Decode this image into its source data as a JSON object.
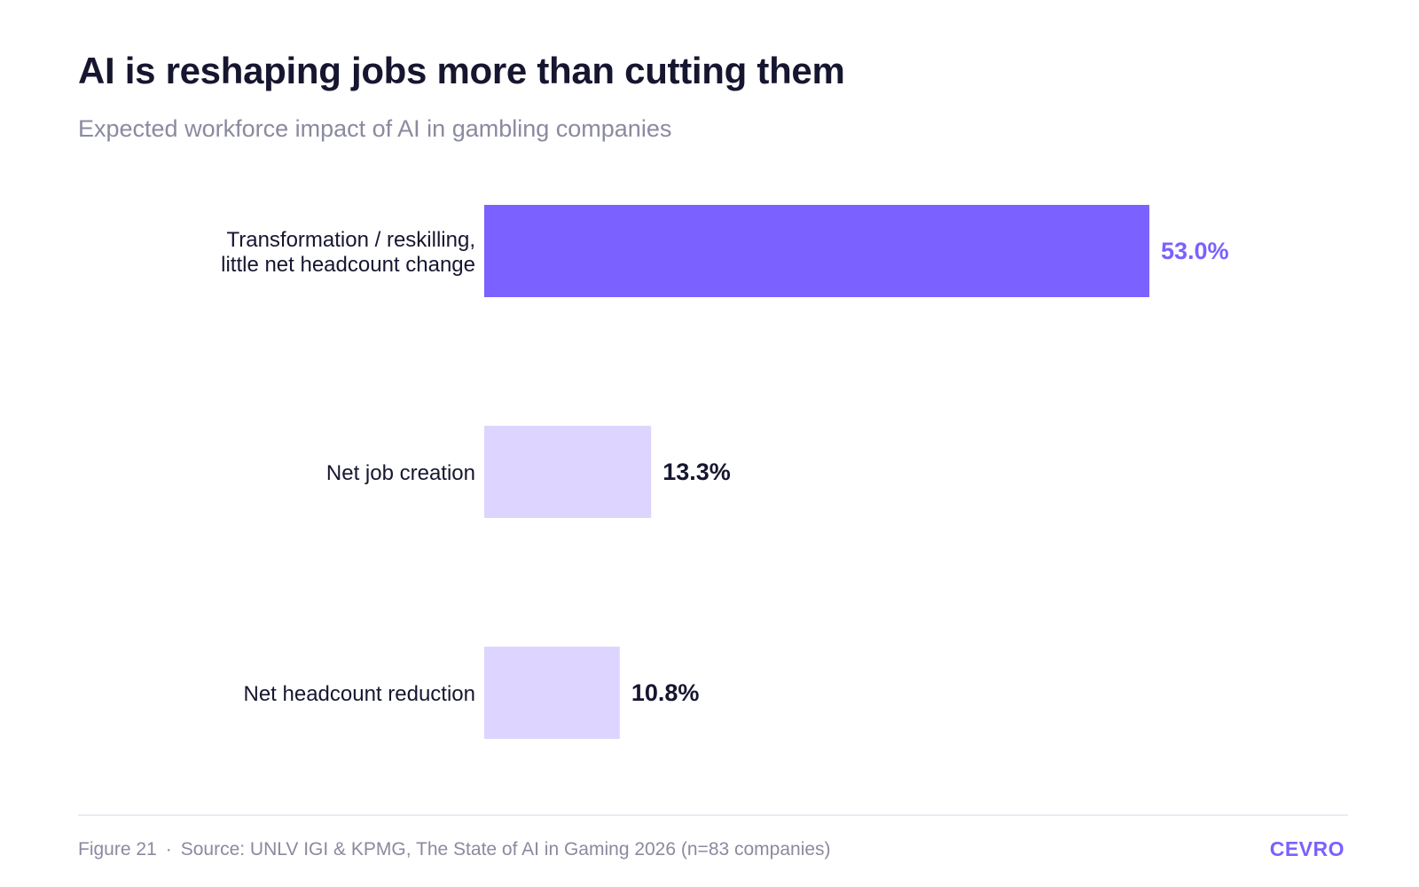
{
  "header": {
    "title": "AI is reshaping jobs more than cutting them",
    "subtitle": "Expected workforce impact of AI in gambling companies"
  },
  "colors": {
    "highlight": "#7b61ff",
    "muted": "#ddd5ff",
    "label_text": "#161630"
  },
  "chart_data": {
    "type": "bar",
    "orientation": "horizontal",
    "categories": [
      [
        "Transformation / reskilling,",
        "little net headcount change"
      ],
      [
        "Net job creation"
      ],
      [
        "Net headcount reduction"
      ]
    ],
    "values": [
      53.0,
      13.3,
      10.8
    ],
    "data_labels": [
      "53.0%",
      "13.3%",
      "10.8%"
    ],
    "highlighted_index": 0,
    "unit": "%",
    "xlim": [
      0,
      100
    ],
    "grid": false,
    "legend": "none"
  },
  "footer": {
    "figure": "Figure 21",
    "separator": "·",
    "source": "Source: UNLV IGI & KPMG, The State of AI in Gaming 2026 (n=83 companies)",
    "brand": "CEVRO"
  }
}
